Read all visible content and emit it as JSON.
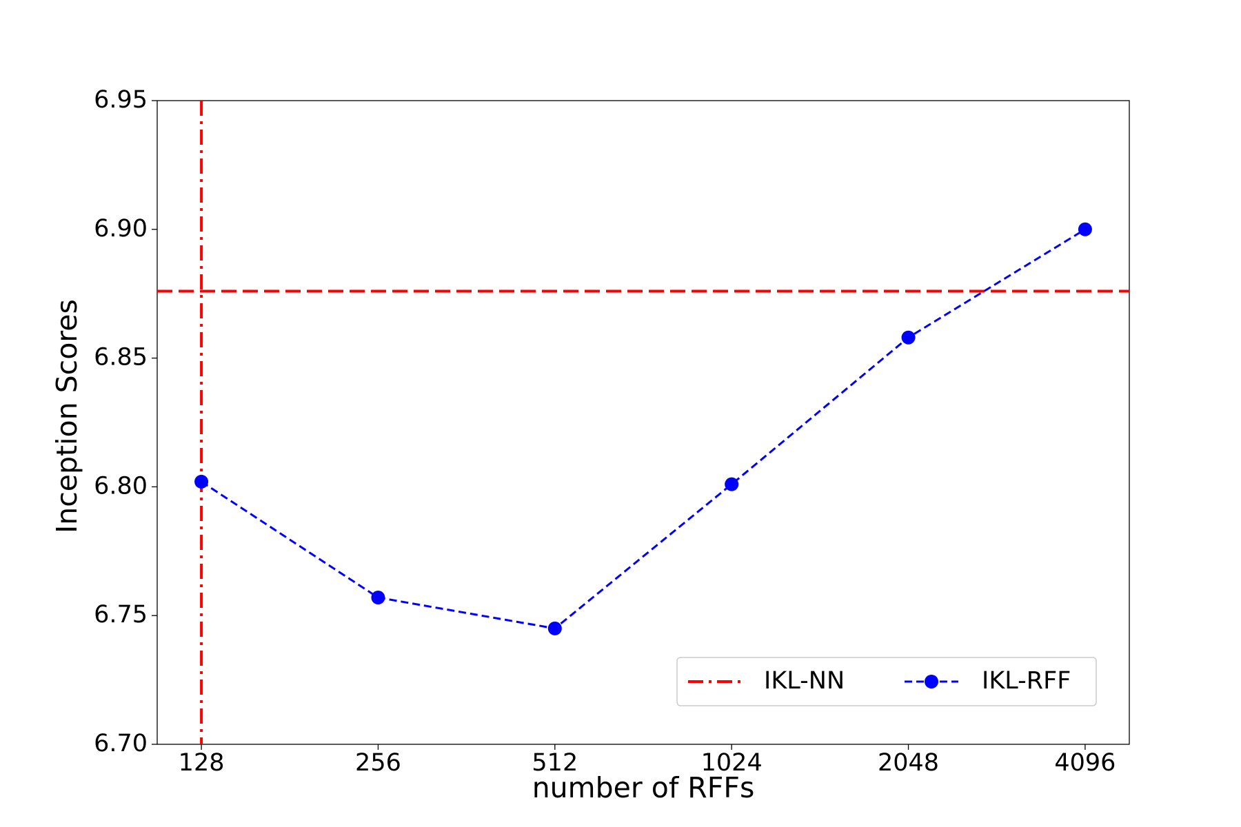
{
  "chart_data": {
    "type": "line",
    "x_label": "number of RFFs",
    "y_label": "Inception Scores",
    "categories": [
      "128",
      "256",
      "512",
      "1024",
      "2048",
      "4096"
    ],
    "series": [
      {
        "name": "IKL-RFF",
        "color": "#0000ff",
        "values": [
          6.802,
          6.757,
          6.745,
          6.801,
          6.858,
          6.9
        ]
      }
    ],
    "reference": {
      "name": "IKL-NN",
      "color": "#ff0000",
      "y": 6.876,
      "x": "128"
    },
    "ylim": [
      6.7,
      6.95
    ],
    "yticks": [
      {
        "value": 6.7,
        "label": "6.70"
      },
      {
        "value": 6.75,
        "label": "6.75"
      },
      {
        "value": 6.8,
        "label": "6.80"
      },
      {
        "value": 6.85,
        "label": "6.85"
      },
      {
        "value": 6.9,
        "label": "6.90"
      },
      {
        "value": 6.95,
        "label": "6.95"
      }
    ],
    "grid": false,
    "legend": "lower right"
  }
}
